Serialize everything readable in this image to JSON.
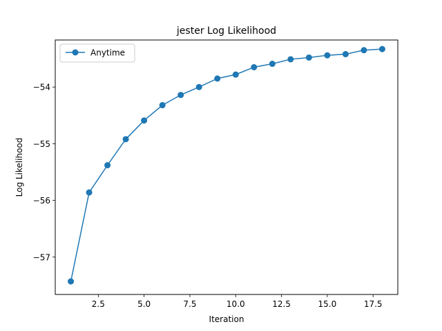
{
  "chart_data": {
    "type": "line",
    "title": "jester Log Likelihood",
    "xlabel": "Iteration",
    "ylabel": "Log Likelihood",
    "xlim": [
      0.15,
      18.85
    ],
    "ylim": [
      -57.66,
      -53.17
    ],
    "xticks": [
      2.5,
      5.0,
      7.5,
      10.0,
      12.5,
      15.0,
      17.5
    ],
    "xtick_labels": [
      "2.5",
      "5.0",
      "7.5",
      "10.0",
      "12.5",
      "15.0",
      "17.5"
    ],
    "yticks": [
      -57,
      -56,
      -55,
      -54
    ],
    "ytick_labels": [
      "−57",
      "−56",
      "−55",
      "−54"
    ],
    "grid": false,
    "legend_position": "top-left",
    "series": [
      {
        "name": "Anytime",
        "color": "#1f77b4",
        "marker": "circle",
        "x": [
          1,
          2,
          3,
          4,
          5,
          6,
          7,
          8,
          9,
          10,
          11,
          12,
          13,
          14,
          15,
          16,
          17,
          18
        ],
        "values": [
          -57.43,
          -55.86,
          -55.38,
          -54.92,
          -54.59,
          -54.32,
          -54.14,
          -54.0,
          -53.85,
          -53.78,
          -53.65,
          -53.59,
          -53.51,
          -53.48,
          -53.44,
          -53.42,
          -53.35,
          -53.33
        ]
      }
    ]
  }
}
